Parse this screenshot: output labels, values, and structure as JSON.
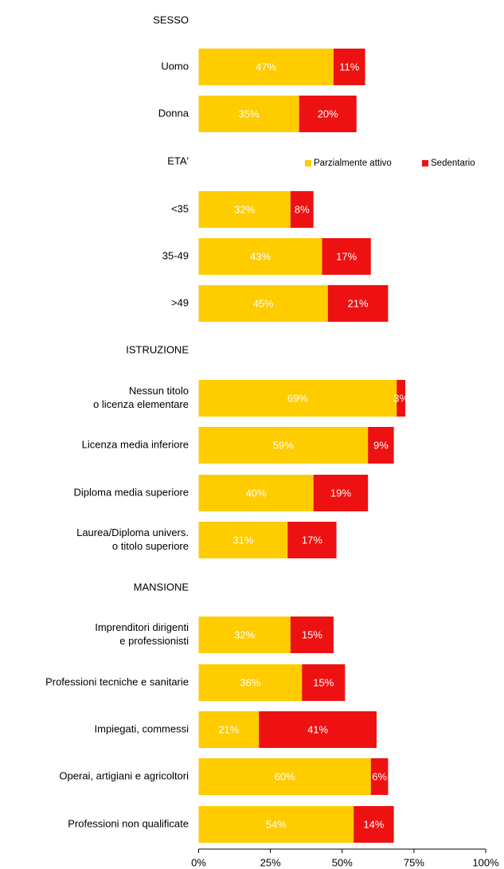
{
  "chart_data": {
    "type": "bar",
    "orientation": "horizontal",
    "stacked": true,
    "xlim": [
      0,
      100
    ],
    "x_ticks": [
      "0%",
      "25%",
      "50%",
      "75%",
      "100%"
    ],
    "grid": false,
    "legend_position": "right, beside ETA' header",
    "series": [
      {
        "name": "Parzialmente attivo",
        "color": "#FFCC00",
        "label_color": "#ffffff"
      },
      {
        "name": "Sedentario",
        "color": "#EE1111",
        "label_color": "#ffffff"
      }
    ],
    "groups": [
      {
        "header": "SESSO",
        "rows": [
          {
            "label": [
              "Uomo"
            ],
            "values": [
              47,
              11
            ]
          },
          {
            "label": [
              "Donna"
            ],
            "values": [
              35,
              20
            ]
          }
        ]
      },
      {
        "header": "ETA'",
        "rows": [
          {
            "label": [
              "<35"
            ],
            "values": [
              32,
              8
            ]
          },
          {
            "label": [
              "35-49"
            ],
            "values": [
              43,
              17
            ]
          },
          {
            "label": [
              ">49"
            ],
            "values": [
              45,
              21
            ]
          }
        ]
      },
      {
        "header": "ISTRUZIONE",
        "rows": [
          {
            "label": [
              "Nessun titolo",
              "o licenza elementare"
            ],
            "values": [
              69,
              3
            ]
          },
          {
            "label": [
              "Licenza media inferiore"
            ],
            "values": [
              59,
              9
            ]
          },
          {
            "label": [
              "Diploma media superiore"
            ],
            "values": [
              40,
              19
            ]
          },
          {
            "label": [
              "Laurea/Diploma univers.",
              "o titolo superiore"
            ],
            "values": [
              31,
              17
            ]
          }
        ]
      },
      {
        "header": "MANSIONE",
        "rows": [
          {
            "label": [
              "Imprenditori dirigenti",
              "e professionisti"
            ],
            "values": [
              32,
              15
            ]
          },
          {
            "label": [
              "Professioni tecniche e sanitarie"
            ],
            "values": [
              36,
              15
            ]
          },
          {
            "label": [
              "Impiegati, commessi"
            ],
            "values": [
              21,
              41
            ]
          },
          {
            "label": [
              "Operai, artigiani e agricoltori"
            ],
            "values": [
              60,
              6
            ]
          },
          {
            "label": [
              "Professioni non qualificate"
            ],
            "values": [
              54,
              14
            ]
          }
        ]
      }
    ]
  }
}
